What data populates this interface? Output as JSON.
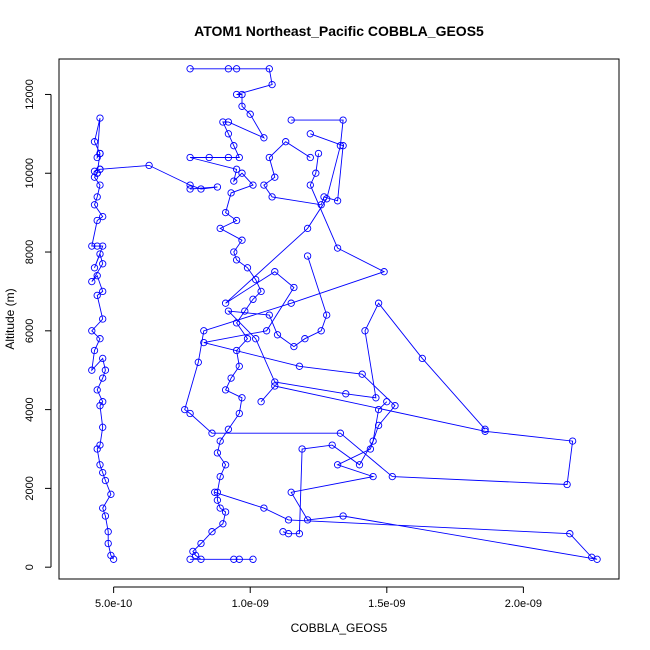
{
  "chart_data": {
    "type": "line",
    "title": "ATOM1 Northeast_Pacific COBBLA_GEOS5",
    "xlabel": "COBBLA_GEOS5",
    "ylabel": "Altitude (m)",
    "xlim": [
      3e-10,
      2.35e-09
    ],
    "ylim": [
      -300,
      12900
    ],
    "x_ticks": [
      5e-10,
      1e-09,
      1.5e-09,
      2e-09
    ],
    "x_tick_labels": [
      "5.0e-10",
      "1.0e-09",
      "1.5e-09",
      "2.0e-09"
    ],
    "y_ticks": [
      0,
      2000,
      4000,
      6000,
      8000,
      10000,
      12000
    ],
    "y_tick_labels": [
      "0",
      "2000",
      "4000",
      "6000",
      "8000",
      "10000",
      "12000"
    ],
    "grid": false,
    "colors": {
      "series": "#0000ff",
      "axis": "#000000"
    },
    "marker": "open-circle",
    "series": [
      {
        "points": [
          [
            5e-10,
            200
          ],
          [
            4.9e-10,
            300
          ],
          [
            4.8e-10,
            600
          ],
          [
            4.8e-10,
            900
          ],
          [
            4.7e-10,
            1300
          ],
          [
            4.6e-10,
            1500
          ],
          [
            4.9e-10,
            1850
          ],
          [
            4.7e-10,
            2200
          ],
          [
            4.6e-10,
            2400
          ],
          [
            4.5e-10,
            2600
          ],
          [
            4.4e-10,
            3000
          ],
          [
            4.5e-10,
            3100
          ],
          [
            4.6e-10,
            3550
          ],
          [
            4.5e-10,
            4100
          ],
          [
            4.6e-10,
            4200
          ],
          [
            4.4e-10,
            4500
          ],
          [
            4.6e-10,
            4800
          ],
          [
            4.7e-10,
            5000
          ],
          [
            4.6e-10,
            5300
          ],
          [
            4.2e-10,
            5000
          ],
          [
            4.3e-10,
            5500
          ],
          [
            4.5e-10,
            5800
          ],
          [
            4.2e-10,
            6000
          ],
          [
            4.6e-10,
            6300
          ],
          [
            4.4e-10,
            6900
          ],
          [
            4.6e-10,
            7000
          ],
          [
            4.4e-10,
            7400
          ],
          [
            4.2e-10,
            7250
          ],
          [
            4.6e-10,
            7700
          ],
          [
            4.5e-10,
            7950
          ],
          [
            4.3e-10,
            7600
          ],
          [
            4.6e-10,
            8150
          ],
          [
            4.4e-10,
            8150
          ],
          [
            4.2e-10,
            8150
          ],
          [
            4.4e-10,
            8800
          ],
          [
            4.6e-10,
            8900
          ],
          [
            4.3e-10,
            9200
          ],
          [
            4.4e-10,
            9400
          ],
          [
            4.5e-10,
            9700
          ],
          [
            4.3e-10,
            9900
          ],
          [
            4.4e-10,
            10000
          ],
          [
            4.5e-10,
            10500
          ],
          [
            4.3e-10,
            10800
          ],
          [
            4.5e-10,
            11400
          ],
          [
            4.4e-10,
            10400
          ],
          [
            4.5e-10,
            10500
          ],
          [
            4.4e-10,
            10000
          ],
          [
            4.3e-10,
            10050
          ],
          [
            4.5e-10,
            10100
          ]
        ]
      },
      {
        "points": [
          [
            4.5e-10,
            10100
          ],
          [
            6.3e-10,
            10200
          ],
          [
            7.8e-10,
            9700
          ],
          [
            8.2e-10,
            9600
          ],
          [
            8.8e-10,
            9650
          ],
          [
            7.8e-10,
            9600
          ]
        ]
      },
      {
        "points": [
          [
            7.8e-10,
            12650
          ],
          [
            9.2e-10,
            12650
          ],
          [
            9.5e-10,
            12650
          ],
          [
            1.07e-09,
            12650
          ],
          [
            1.08e-09,
            12250
          ],
          [
            9.5e-10,
            12000
          ],
          [
            9.7e-10,
            12000
          ],
          [
            9.7e-10,
            11700
          ],
          [
            1e-09,
            11500
          ],
          [
            1.05e-09,
            10900
          ],
          [
            9.2e-10,
            11300
          ],
          [
            9e-10,
            11300
          ],
          [
            9.2e-10,
            11000
          ],
          [
            9.4e-10,
            10700
          ],
          [
            9.6e-10,
            10400
          ],
          [
            9.2e-10,
            10400
          ],
          [
            8.5e-10,
            10400
          ],
          [
            7.8e-10,
            10400
          ],
          [
            9.5e-10,
            10100
          ],
          [
            9.4e-10,
            9800
          ],
          [
            9.7e-10,
            10000
          ],
          [
            1.01e-09,
            9700
          ],
          [
            9.3e-10,
            9500
          ],
          [
            9.1e-10,
            9000
          ],
          [
            9.5e-10,
            8800
          ],
          [
            8.9e-10,
            8600
          ],
          [
            9.7e-10,
            8300
          ],
          [
            9.4e-10,
            8000
          ],
          [
            9.5e-10,
            7800
          ],
          [
            9.9e-10,
            7600
          ],
          [
            1.02e-09,
            7300
          ],
          [
            1.04e-09,
            7000
          ],
          [
            1.01e-09,
            6800
          ],
          [
            9.8e-10,
            6500
          ],
          [
            9.5e-10,
            6200
          ],
          [
            9.9e-10,
            5800
          ],
          [
            9.5e-10,
            5500
          ],
          [
            9.6e-10,
            5100
          ],
          [
            9.3e-10,
            4800
          ],
          [
            9.1e-10,
            4500
          ],
          [
            9.7e-10,
            4300
          ],
          [
            9.6e-10,
            3900
          ],
          [
            9.2e-10,
            3500
          ],
          [
            8.9e-10,
            3200
          ],
          [
            8.8e-10,
            2900
          ],
          [
            9.1e-10,
            2600
          ],
          [
            8.9e-10,
            2300
          ],
          [
            8.8e-10,
            1900
          ],
          [
            8.8e-10,
            1700
          ],
          [
            8.9e-10,
            1500
          ],
          [
            9.1e-10,
            1400
          ],
          [
            9e-10,
            1100
          ],
          [
            8.6e-10,
            900
          ],
          [
            8.2e-10,
            600
          ],
          [
            7.9e-10,
            400
          ],
          [
            8e-10,
            300
          ],
          [
            8.2e-10,
            200
          ],
          [
            7.8e-10,
            200
          ],
          [
            9.4e-10,
            200
          ],
          [
            9.6e-10,
            200
          ],
          [
            1.01e-09,
            200
          ]
        ]
      },
      {
        "points": [
          [
            1.15e-09,
            11350
          ],
          [
            1.34e-09,
            11350
          ],
          [
            1.33e-09,
            10700
          ],
          [
            1.28e-09,
            9350
          ],
          [
            1.21e-09,
            8600
          ],
          [
            9.1e-10,
            6700
          ],
          [
            1.09e-09,
            7500
          ],
          [
            1.16e-09,
            7100
          ],
          [
            1.06e-09,
            6000
          ],
          [
            8.3e-10,
            5700
          ],
          [
            1.18e-09,
            5100
          ],
          [
            1.41e-09,
            4900
          ],
          [
            1.53e-09,
            4100
          ],
          [
            1.47e-09,
            3600
          ],
          [
            1.44e-09,
            3000
          ],
          [
            1.32e-09,
            2600
          ],
          [
            1.45e-09,
            2300
          ],
          [
            1.15e-09,
            1900
          ],
          [
            1.21e-09,
            1200
          ],
          [
            1.34e-09,
            1300
          ],
          [
            2.27e-09,
            200
          ],
          [
            2.25e-09,
            250
          ],
          [
            2.17e-09,
            850
          ],
          [
            1.14e-09,
            1200
          ],
          [
            1.05e-09,
            1500
          ],
          [
            8.7e-10,
            1900
          ]
        ]
      },
      {
        "points": [
          [
            1.25e-09,
            10500
          ],
          [
            1.24e-09,
            10000
          ],
          [
            1.22e-09,
            9700
          ],
          [
            1.32e-09,
            8100
          ],
          [
            1.49e-09,
            7500
          ],
          [
            1.15e-09,
            6700
          ],
          [
            8.3e-10,
            6000
          ],
          [
            8.1e-10,
            5200
          ],
          [
            7.6e-10,
            4000
          ],
          [
            7.8e-10,
            3900
          ],
          [
            8.6e-10,
            3400
          ],
          [
            1.33e-09,
            3400
          ],
          [
            1.52e-09,
            2300
          ],
          [
            2.16e-09,
            2100
          ],
          [
            2.18e-09,
            3200
          ],
          [
            1.86e-09,
            3450
          ],
          [
            1.09e-09,
            4600
          ],
          [
            1.04e-09,
            4200
          ]
        ]
      },
      {
        "points": [
          [
            1.22e-09,
            10400
          ],
          [
            1.13e-09,
            10800
          ],
          [
            1.07e-09,
            10400
          ],
          [
            1.09e-09,
            9900
          ],
          [
            1.05e-09,
            9700
          ],
          [
            1.08e-09,
            9400
          ],
          [
            1.26e-09,
            9200
          ],
          [
            1.27e-09,
            9400
          ],
          [
            1.32e-09,
            9300
          ],
          [
            1.34e-09,
            10700
          ],
          [
            1.22e-09,
            11000
          ]
        ]
      },
      {
        "points": [
          [
            1.21e-09,
            7900
          ],
          [
            1.28e-09,
            6400
          ],
          [
            1.26e-09,
            6000
          ],
          [
            1.2e-09,
            5800
          ],
          [
            1.16e-09,
            5600
          ],
          [
            1.1e-09,
            5900
          ],
          [
            1.07e-09,
            6400
          ],
          [
            9.2e-10,
            6500
          ],
          [
            1.02e-09,
            5800
          ],
          [
            1.09e-09,
            4700
          ],
          [
            1.35e-09,
            4400
          ],
          [
            1.46e-09,
            4300
          ],
          [
            1.42e-09,
            6000
          ],
          [
            1.47e-09,
            6700
          ],
          [
            1.63e-09,
            5300
          ],
          [
            1.86e-09,
            3500
          ]
        ]
      },
      {
        "points": [
          [
            1.12e-09,
            900
          ],
          [
            1.14e-09,
            850
          ],
          [
            1.18e-09,
            850
          ],
          [
            1.19e-09,
            3000
          ],
          [
            1.3e-09,
            3100
          ],
          [
            1.4e-09,
            2600
          ],
          [
            1.45e-09,
            3200
          ],
          [
            1.47e-09,
            4000
          ],
          [
            1.5e-09,
            4200
          ]
        ]
      }
    ]
  }
}
